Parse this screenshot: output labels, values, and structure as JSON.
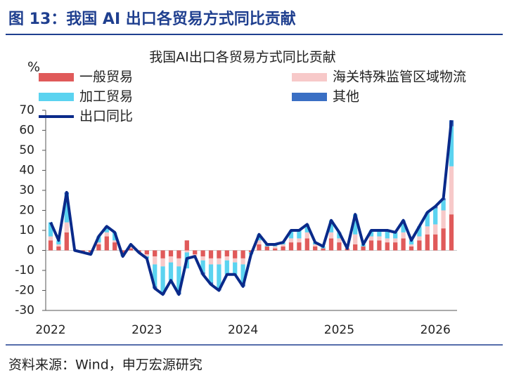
{
  "header": {
    "title": "图 13：我国 AI 出口各贸易方式同比贡献"
  },
  "footer": {
    "source": "资料来源：Wind，申万宏源研究"
  },
  "chart_data": {
    "type": "stacked_bar_line",
    "title": "我国AI出口各贸易方式同比贡献",
    "ylabel": "%",
    "categories": [
      "2022",
      null,
      null,
      null,
      null,
      null,
      null,
      null,
      null,
      null,
      null,
      null,
      "2023",
      null,
      null,
      null,
      null,
      null,
      null,
      null,
      null,
      null,
      null,
      null,
      "2024",
      null,
      null,
      null,
      null,
      null,
      null,
      null,
      null,
      null,
      null,
      null,
      "2025",
      null,
      null,
      null,
      null,
      null,
      null,
      null,
      null,
      null,
      null,
      null,
      "2026",
      null,
      null
    ],
    "series": [
      {
        "name": "一般贸易",
        "type": "bar",
        "color": "#e05a5a",
        "values": [
          5,
          2,
          9,
          0,
          -1,
          -1,
          3,
          7,
          4,
          -2,
          1,
          -1,
          -2,
          -3,
          -4,
          -3,
          -4,
          5,
          -2,
          -3,
          -4,
          -4,
          -3,
          -4,
          -4,
          -1,
          3,
          2,
          1,
          2,
          4,
          4,
          6,
          2,
          1,
          6,
          4,
          1,
          3,
          2,
          5,
          5,
          4,
          4,
          6,
          2,
          5,
          8,
          8,
          11,
          18
        ]
      },
      {
        "name": "海关特殊监管区域物流",
        "type": "bar",
        "color": "#f7c9c9",
        "values": [
          2,
          1,
          5,
          0,
          0,
          0,
          1,
          2,
          1,
          0,
          1,
          0,
          -1,
          -4,
          -4,
          -3,
          -4,
          -1,
          -1,
          -2,
          -3,
          -3,
          -2,
          -2,
          -3,
          0,
          2,
          0,
          1,
          1,
          2,
          2,
          3,
          1,
          0,
          3,
          2,
          0,
          5,
          0,
          2,
          2,
          2,
          2,
          3,
          1,
          2,
          4,
          5,
          9,
          24
        ]
      },
      {
        "name": "加工贸易",
        "type": "bar",
        "color": "#5bd3f0",
        "values": [
          7,
          2,
          14,
          0,
          0,
          -1,
          3,
          3,
          4,
          -1,
          1,
          0,
          -1,
          -11,
          -13,
          -9,
          -13,
          -8,
          0,
          -6,
          -9,
          -12,
          -7,
          -6,
          -10,
          -1,
          3,
          1,
          1,
          1,
          4,
          4,
          4,
          1,
          1,
          6,
          3,
          0,
          10,
          1,
          3,
          3,
          4,
          3,
          6,
          2,
          5,
          7,
          8,
          5,
          20
        ]
      },
      {
        "name": "其他",
        "type": "bar",
        "color": "#3a6fc4",
        "values": [
          0,
          0,
          1,
          0,
          0,
          0,
          0,
          0,
          0,
          0,
          0,
          0,
          0,
          -1,
          -1,
          0,
          -1,
          0,
          0,
          -1,
          -1,
          -1,
          0,
          0,
          -1,
          0,
          0,
          0,
          0,
          0,
          0,
          0,
          0,
          0,
          0,
          0,
          0,
          0,
          0,
          0,
          0,
          0,
          0,
          0,
          0,
          0,
          0,
          0,
          1,
          1,
          3
        ]
      },
      {
        "name": "出口同比",
        "type": "line",
        "color": "#0a2a8a",
        "values": [
          14,
          5,
          29,
          0,
          -1,
          -2,
          7,
          12,
          9,
          -3,
          3,
          -1,
          -4,
          -19,
          -22,
          -15,
          -22,
          -4,
          -3,
          -12,
          -17,
          -20,
          -12,
          -12,
          -18,
          -2,
          8,
          3,
          3,
          4,
          10,
          10,
          13,
          4,
          2,
          15,
          9,
          1,
          18,
          3,
          10,
          10,
          10,
          9,
          15,
          5,
          12,
          19,
          22,
          26,
          65
        ]
      }
    ],
    "ylim": [
      -30,
      70
    ],
    "yticks": [
      -30,
      -20,
      -10,
      0,
      10,
      20,
      30,
      40,
      50,
      60,
      70
    ],
    "grid": false,
    "legend": "top"
  }
}
